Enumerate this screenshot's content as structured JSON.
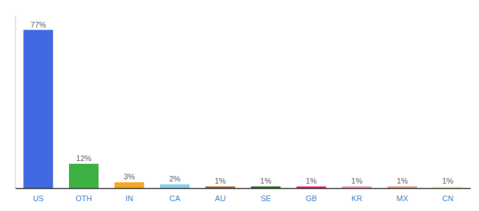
{
  "chart_data": {
    "type": "bar",
    "categories": [
      "US",
      "OTH",
      "IN",
      "CA",
      "AU",
      "SE",
      "GB",
      "KR",
      "MX",
      "CN"
    ],
    "values": [
      77,
      12,
      3,
      2,
      1,
      1,
      1,
      1,
      1,
      1
    ],
    "value_labels": [
      "77%",
      "12%",
      "3%",
      "2%",
      "1%",
      "1%",
      "1%",
      "1%",
      "1%",
      "1%"
    ],
    "colors": [
      "#4169e1",
      "#3cb043",
      "#f5a623",
      "#87ceeb",
      "#b05c2a",
      "#1a7a1a",
      "#e91e8c",
      "#f48fb1",
      "#e8967a",
      "#f5f0c0"
    ],
    "ylim": [
      0,
      84
    ],
    "data_labels": true,
    "tick_labels": "x"
  }
}
